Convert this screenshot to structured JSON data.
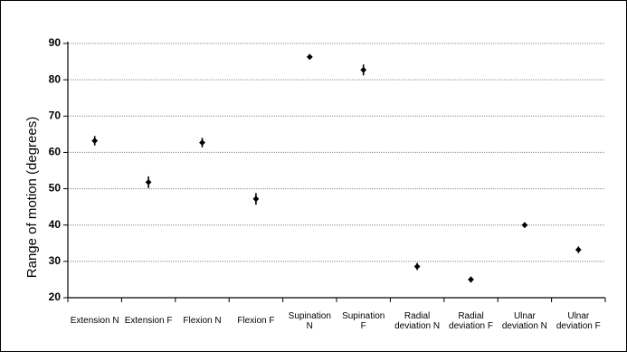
{
  "chart_data": {
    "type": "scatter",
    "title": "",
    "xlabel": "",
    "ylabel": "Range of motion (degrees)",
    "ylim": [
      20,
      90
    ],
    "yticks": [
      "20",
      "30",
      "40",
      "50",
      "60",
      "70",
      "80",
      "90"
    ],
    "grid": true,
    "categories": [
      [
        "Extension N"
      ],
      [
        "Extension F"
      ],
      [
        "Flexion N"
      ],
      [
        "Flexion F"
      ],
      [
        "Supination",
        "N"
      ],
      [
        "Supination",
        "F"
      ],
      [
        "Radial",
        "deviation N"
      ],
      [
        "Radial",
        "deviation F"
      ],
      [
        "Ulnar",
        "deviation N"
      ],
      [
        "Ulnar",
        "deviation F"
      ]
    ],
    "values": [
      63.2,
      51.8,
      62.7,
      47.2,
      86.3,
      82.7,
      28.6,
      25.0,
      40.0,
      33.2
    ],
    "errors": [
      1.3,
      1.6,
      1.3,
      1.6,
      0.5,
      1.5,
      1.0,
      0.8,
      0.7,
      0.9
    ],
    "colors": {
      "marker": "#000000",
      "grid": "#8c8c8c",
      "axis": "#000000"
    }
  }
}
